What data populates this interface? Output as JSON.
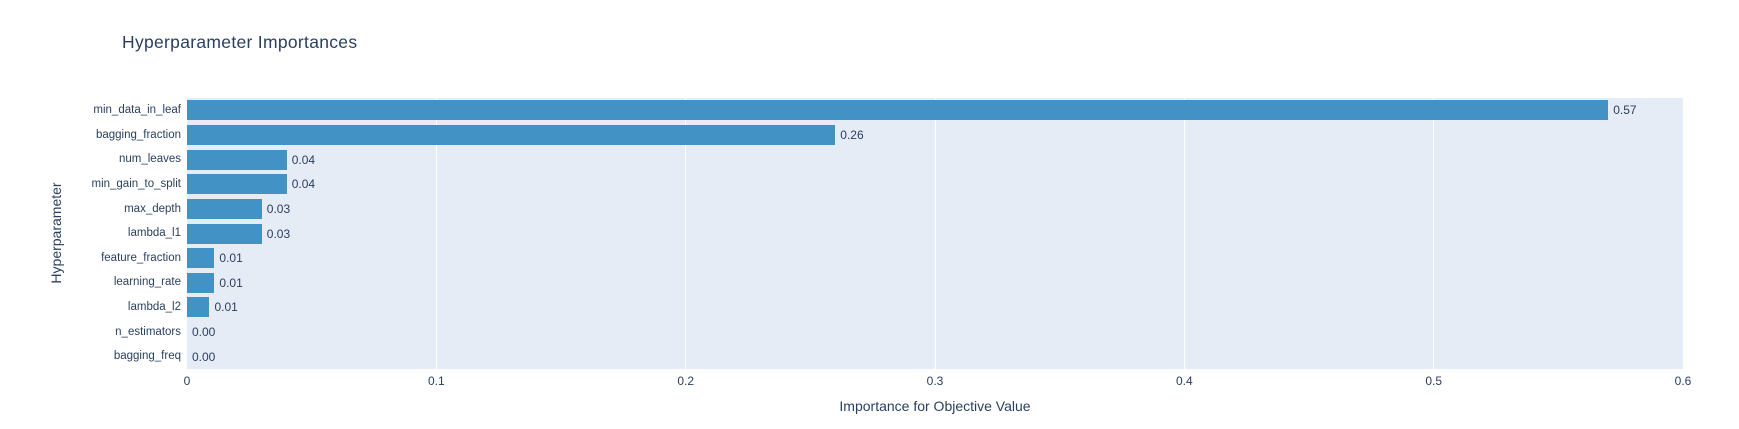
{
  "title": "Hyperparameter Importances",
  "colors": {
    "bar": "#4292c6",
    "plot_background": "#e5ecf6",
    "grid": "#ffffff",
    "text": "#2a3f5f",
    "page_background": "#ffffff"
  },
  "chart_data": {
    "type": "bar",
    "orientation": "horizontal",
    "title": "Hyperparameter Importances",
    "xlabel": "Importance for Objective Value",
    "ylabel": "Hyperparameter",
    "xlim": [
      0,
      0.6
    ],
    "xtick_values": [
      0,
      0.1,
      0.2,
      0.3,
      0.4,
      0.5,
      0.6
    ],
    "xtick_labels": [
      "0",
      "0.1",
      "0.2",
      "0.3",
      "0.4",
      "0.5",
      "0.6"
    ],
    "grid": true,
    "legend": "none",
    "categories": [
      "min_data_in_leaf",
      "bagging_fraction",
      "num_leaves",
      "min_gain_to_split",
      "max_depth",
      "lambda_l1",
      "feature_fraction",
      "learning_rate",
      "lambda_l2",
      "n_estimators",
      "bagging_freq"
    ],
    "values": [
      0.57,
      0.26,
      0.04,
      0.04,
      0.03,
      0.03,
      0.011,
      0.011,
      0.009,
      0.0,
      0.0
    ],
    "value_labels": [
      "0.57",
      "0.26",
      "0.04",
      "0.04",
      "0.03",
      "0.03",
      "0.01",
      "0.01",
      "0.01",
      "0.00",
      "0.00"
    ]
  }
}
